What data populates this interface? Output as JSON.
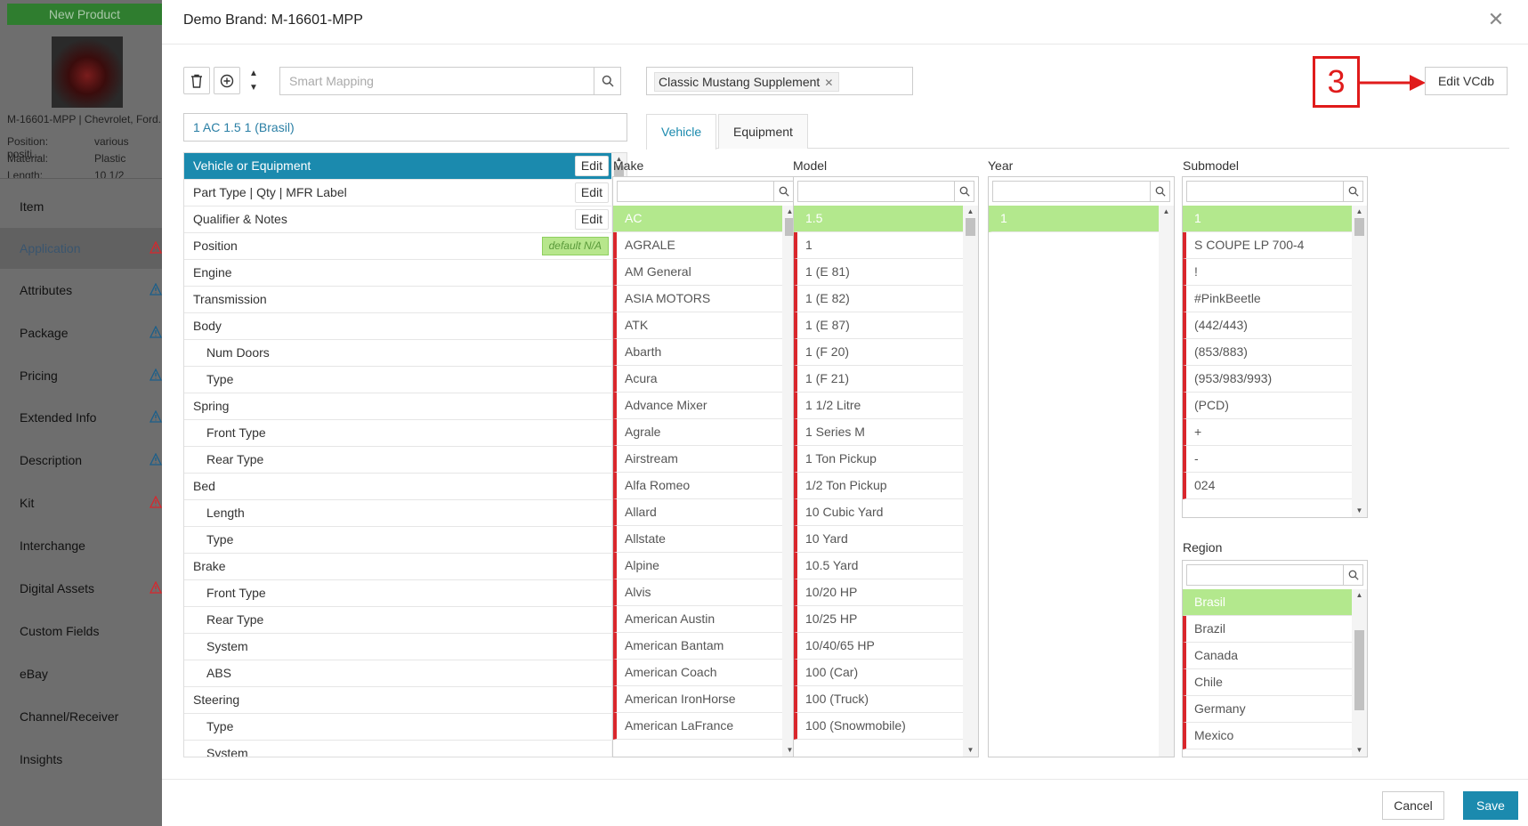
{
  "background": {
    "new_product_label": "New Product",
    "product_title": "M-16601-MPP | Chevrolet, Ford...",
    "props": [
      {
        "label": "Position:",
        "value": "various positi..."
      },
      {
        "label": "Material:",
        "value": "Plastic"
      },
      {
        "label": "Length:",
        "value": "10 1/2"
      }
    ],
    "nav": [
      {
        "label": "Item",
        "warn": false,
        "active": false
      },
      {
        "label": "Application",
        "warn": true,
        "warn_color": "#d9262c",
        "active": true
      },
      {
        "label": "Attributes",
        "warn": true,
        "warn_color": "#1b5f8a",
        "active": false
      },
      {
        "label": "Package",
        "warn": true,
        "warn_color": "#1b5f8a",
        "active": false
      },
      {
        "label": "Pricing",
        "warn": true,
        "warn_color": "#1b5f8a",
        "active": false
      },
      {
        "label": "Extended Info",
        "warn": true,
        "warn_color": "#1b5f8a",
        "active": false
      },
      {
        "label": "Description",
        "warn": true,
        "warn_color": "#1b5f8a",
        "active": false
      },
      {
        "label": "Kit",
        "warn": true,
        "warn_color": "#d9262c",
        "active": false
      },
      {
        "label": "Interchange",
        "warn": false,
        "active": false
      },
      {
        "label": "Digital Assets",
        "warn": true,
        "warn_color": "#d9262c",
        "active": false
      },
      {
        "label": "Custom Fields",
        "warn": false,
        "active": false
      },
      {
        "label": "eBay",
        "warn": false,
        "active": false
      },
      {
        "label": "Channel/Receiver",
        "warn": false,
        "active": false
      },
      {
        "label": "Insights",
        "warn": false,
        "active": false
      }
    ]
  },
  "modal": {
    "title": "Demo Brand: M-16601-MPP",
    "close_icon": "close-icon",
    "smart_mapping_placeholder": "Smart Mapping",
    "tag": "Classic Mustang Supplement",
    "annotation_number": "3",
    "edit_vcdb_label": "Edit VCdb",
    "selected_vehicle": "1 AC 1.5 1 (Brasil)",
    "attributes": [
      {
        "label": "Vehicle or Equipment",
        "indent": false,
        "active": true,
        "button": "Edit"
      },
      {
        "label": "Part Type | Qty | MFR Label",
        "indent": false,
        "button": "Edit"
      },
      {
        "label": "Qualifier & Notes",
        "indent": false,
        "button": "Edit"
      },
      {
        "label": "Position",
        "indent": false,
        "badge": "default N/A"
      },
      {
        "label": "Engine",
        "indent": false
      },
      {
        "label": "Transmission",
        "indent": false
      },
      {
        "label": "Body",
        "indent": false
      },
      {
        "label": "Num Doors",
        "indent": true
      },
      {
        "label": "Type",
        "indent": true
      },
      {
        "label": "Spring",
        "indent": false
      },
      {
        "label": "Front Type",
        "indent": true
      },
      {
        "label": "Rear Type",
        "indent": true
      },
      {
        "label": "Bed",
        "indent": false
      },
      {
        "label": "Length",
        "indent": true
      },
      {
        "label": "Type",
        "indent": true
      },
      {
        "label": "Brake",
        "indent": false
      },
      {
        "label": "Front Type",
        "indent": true
      },
      {
        "label": "Rear Type",
        "indent": true
      },
      {
        "label": "System",
        "indent": true
      },
      {
        "label": "ABS",
        "indent": true
      },
      {
        "label": "Steering",
        "indent": false
      },
      {
        "label": "Type",
        "indent": true
      },
      {
        "label": "System",
        "indent": true
      }
    ],
    "tabs": [
      {
        "label": "Vehicle",
        "active": true
      },
      {
        "label": "Equipment",
        "active": false
      }
    ],
    "columns": {
      "make": {
        "header": "Make",
        "items": [
          "AC",
          "AGRALE",
          "AM General",
          "ASIA MOTORS",
          "ATK",
          "Abarth",
          "Acura",
          "Advance Mixer",
          "Agrale",
          "Airstream",
          "Alfa Romeo",
          "Allard",
          "Allstate",
          "Alpine",
          "Alvis",
          "American Austin",
          "American Bantam",
          "American Coach",
          "American IronHorse",
          "American LaFrance"
        ],
        "selected": 0
      },
      "model": {
        "header": "Model",
        "items": [
          "1.5",
          "1",
          "1 (E 81)",
          "1 (E 82)",
          "1 (E 87)",
          "1 (F 20)",
          "1 (F 21)",
          "1 1/2 Litre",
          "1 Series M",
          "1 Ton Pickup",
          "1/2 Ton Pickup",
          "10 Cubic Yard",
          "10 Yard",
          "10.5 Yard",
          "10/20 HP",
          "10/25 HP",
          "10/40/65 HP",
          "100 (Car)",
          "100 (Truck)",
          "100 (Snowmobile)"
        ],
        "selected": 0
      },
      "year": {
        "header": "Year",
        "items": [
          "1"
        ],
        "selected": 0
      },
      "submodel": {
        "header": "Submodel",
        "items": [
          "1",
          "S COUPE LP 700-4",
          "!",
          "#PinkBeetle",
          "(442/443)",
          "(853/883)",
          "(953/983/993)",
          "(PCD)",
          "+",
          "-",
          "024"
        ],
        "selected": 0
      },
      "region": {
        "header": "Region",
        "items": [
          "Brasil",
          "Brazil",
          "Canada",
          "Chile",
          "Germany",
          "Mexico"
        ],
        "selected": 0
      }
    },
    "cancel_label": "Cancel",
    "save_label": "Save"
  }
}
